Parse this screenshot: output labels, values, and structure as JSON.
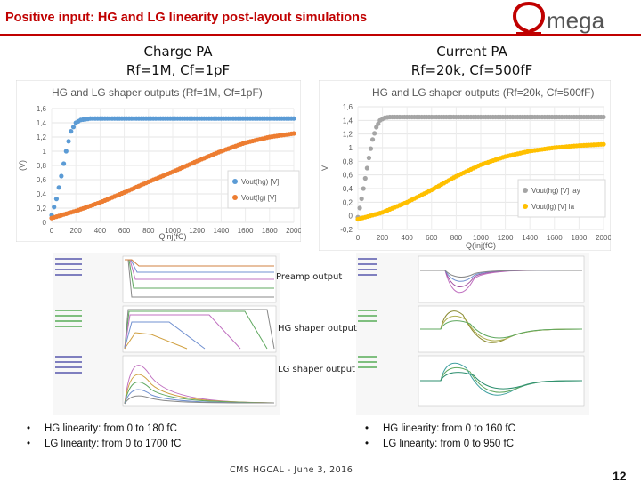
{
  "slide": {
    "title": "Positive input: HG and LG linearity post-layout simulations",
    "logo_text": "mega",
    "left_head": {
      "line1": "Charge PA",
      "line2": "Rf=1M, Cf=1pF"
    },
    "right_head": {
      "line1": "Current PA",
      "line2": "Rf=20k, Cf=500fF"
    },
    "panel_labels": {
      "preamp": "Preamp output",
      "hg": "HG shaper output",
      "lg": "LG shaper output"
    },
    "left_bullets": [
      "HG linearity: from 0 to 180 fC",
      "LG linearity: from 0 to 1700 fC"
    ],
    "right_bullets": [
      "HG linearity: from 0 to 160 fC",
      "LG linearity: from 0 to 950 fC"
    ],
    "footer": "CMS HGCAL -   June 3, 2016",
    "page_number": "12",
    "colors": {
      "title": "#c00000",
      "hg_series": "#5b9bd5",
      "lg_series": "#ed7d31",
      "hg_series_right": "#a5a5a5",
      "lg_series_right": "#ffc000"
    }
  },
  "chart_data": [
    {
      "type": "scatter",
      "title": "HG and LG shaper outputs (Rf=1M, Cf=1pF)",
      "xlabel": "Qinj(fC)",
      "ylabel": "(V)",
      "xlim": [
        0,
        2000
      ],
      "ylim": [
        0,
        1.6
      ],
      "x_ticks": [
        "0",
        "200",
        "400",
        "600",
        "800",
        "1000",
        "1200",
        "1400",
        "1600",
        "1800",
        "2000"
      ],
      "y_ticks": [
        "0",
        "0,2",
        "0,4",
        "0,6",
        "0,8",
        "1",
        "1,2",
        "1,4",
        "1,6"
      ],
      "legend_position": "bottom-right",
      "grid": true,
      "series": [
        {
          "name": "Vout(hg) [V]",
          "x": [
            0,
            40,
            80,
            120,
            160,
            200,
            240,
            280,
            320,
            400,
            500,
            600,
            800,
            1000,
            1200,
            1400,
            1600,
            1800,
            2000
          ],
          "y": [
            0.1,
            0.33,
            0.65,
            1.0,
            1.28,
            1.4,
            1.44,
            1.45,
            1.46,
            1.46,
            1.46,
            1.46,
            1.46,
            1.46,
            1.46,
            1.46,
            1.46,
            1.46,
            1.46
          ]
        },
        {
          "name": "Vout(lg) [V]",
          "x": [
            0,
            200,
            400,
            600,
            800,
            1000,
            1200,
            1400,
            1600,
            1800,
            2000
          ],
          "y": [
            0.06,
            0.16,
            0.28,
            0.42,
            0.57,
            0.71,
            0.86,
            1.0,
            1.12,
            1.2,
            1.25
          ]
        }
      ]
    },
    {
      "type": "scatter",
      "title": "HG and LG shaper outputs (Rf=20k, Cf=500fF)",
      "xlabel": "Q(inj(fC)",
      "ylabel": "V",
      "xlim": [
        0,
        2000
      ],
      "ylim": [
        -0.2,
        1.6
      ],
      "x_ticks": [
        "0",
        "200",
        "400",
        "600",
        "800",
        "1000",
        "1200",
        "1400",
        "1600",
        "1800",
        "2000"
      ],
      "y_ticks": [
        "-0,2",
        "0",
        "0,2",
        "0,4",
        "0,6",
        "0,8",
        "1",
        "1,2",
        "1,4",
        "1,6"
      ],
      "legend_position": "bottom-right",
      "grid": true,
      "series": [
        {
          "name": "Vout(hg) [V] lay",
          "x": [
            0,
            30,
            60,
            90,
            120,
            150,
            180,
            220,
            260,
            300,
            400,
            600,
            800,
            1000,
            1200,
            1400,
            1600,
            1800,
            2000
          ],
          "y": [
            -0.02,
            0.25,
            0.55,
            0.85,
            1.12,
            1.3,
            1.4,
            1.44,
            1.45,
            1.45,
            1.45,
            1.45,
            1.45,
            1.45,
            1.45,
            1.45,
            1.45,
            1.45,
            1.45
          ]
        },
        {
          "name": "Vout(lg) [V] la",
          "x": [
            0,
            200,
            400,
            600,
            800,
            1000,
            1200,
            1400,
            1600,
            1800,
            2000
          ],
          "y": [
            -0.05,
            0.05,
            0.2,
            0.38,
            0.58,
            0.75,
            0.87,
            0.95,
            1.0,
            1.03,
            1.05
          ]
        }
      ]
    }
  ]
}
